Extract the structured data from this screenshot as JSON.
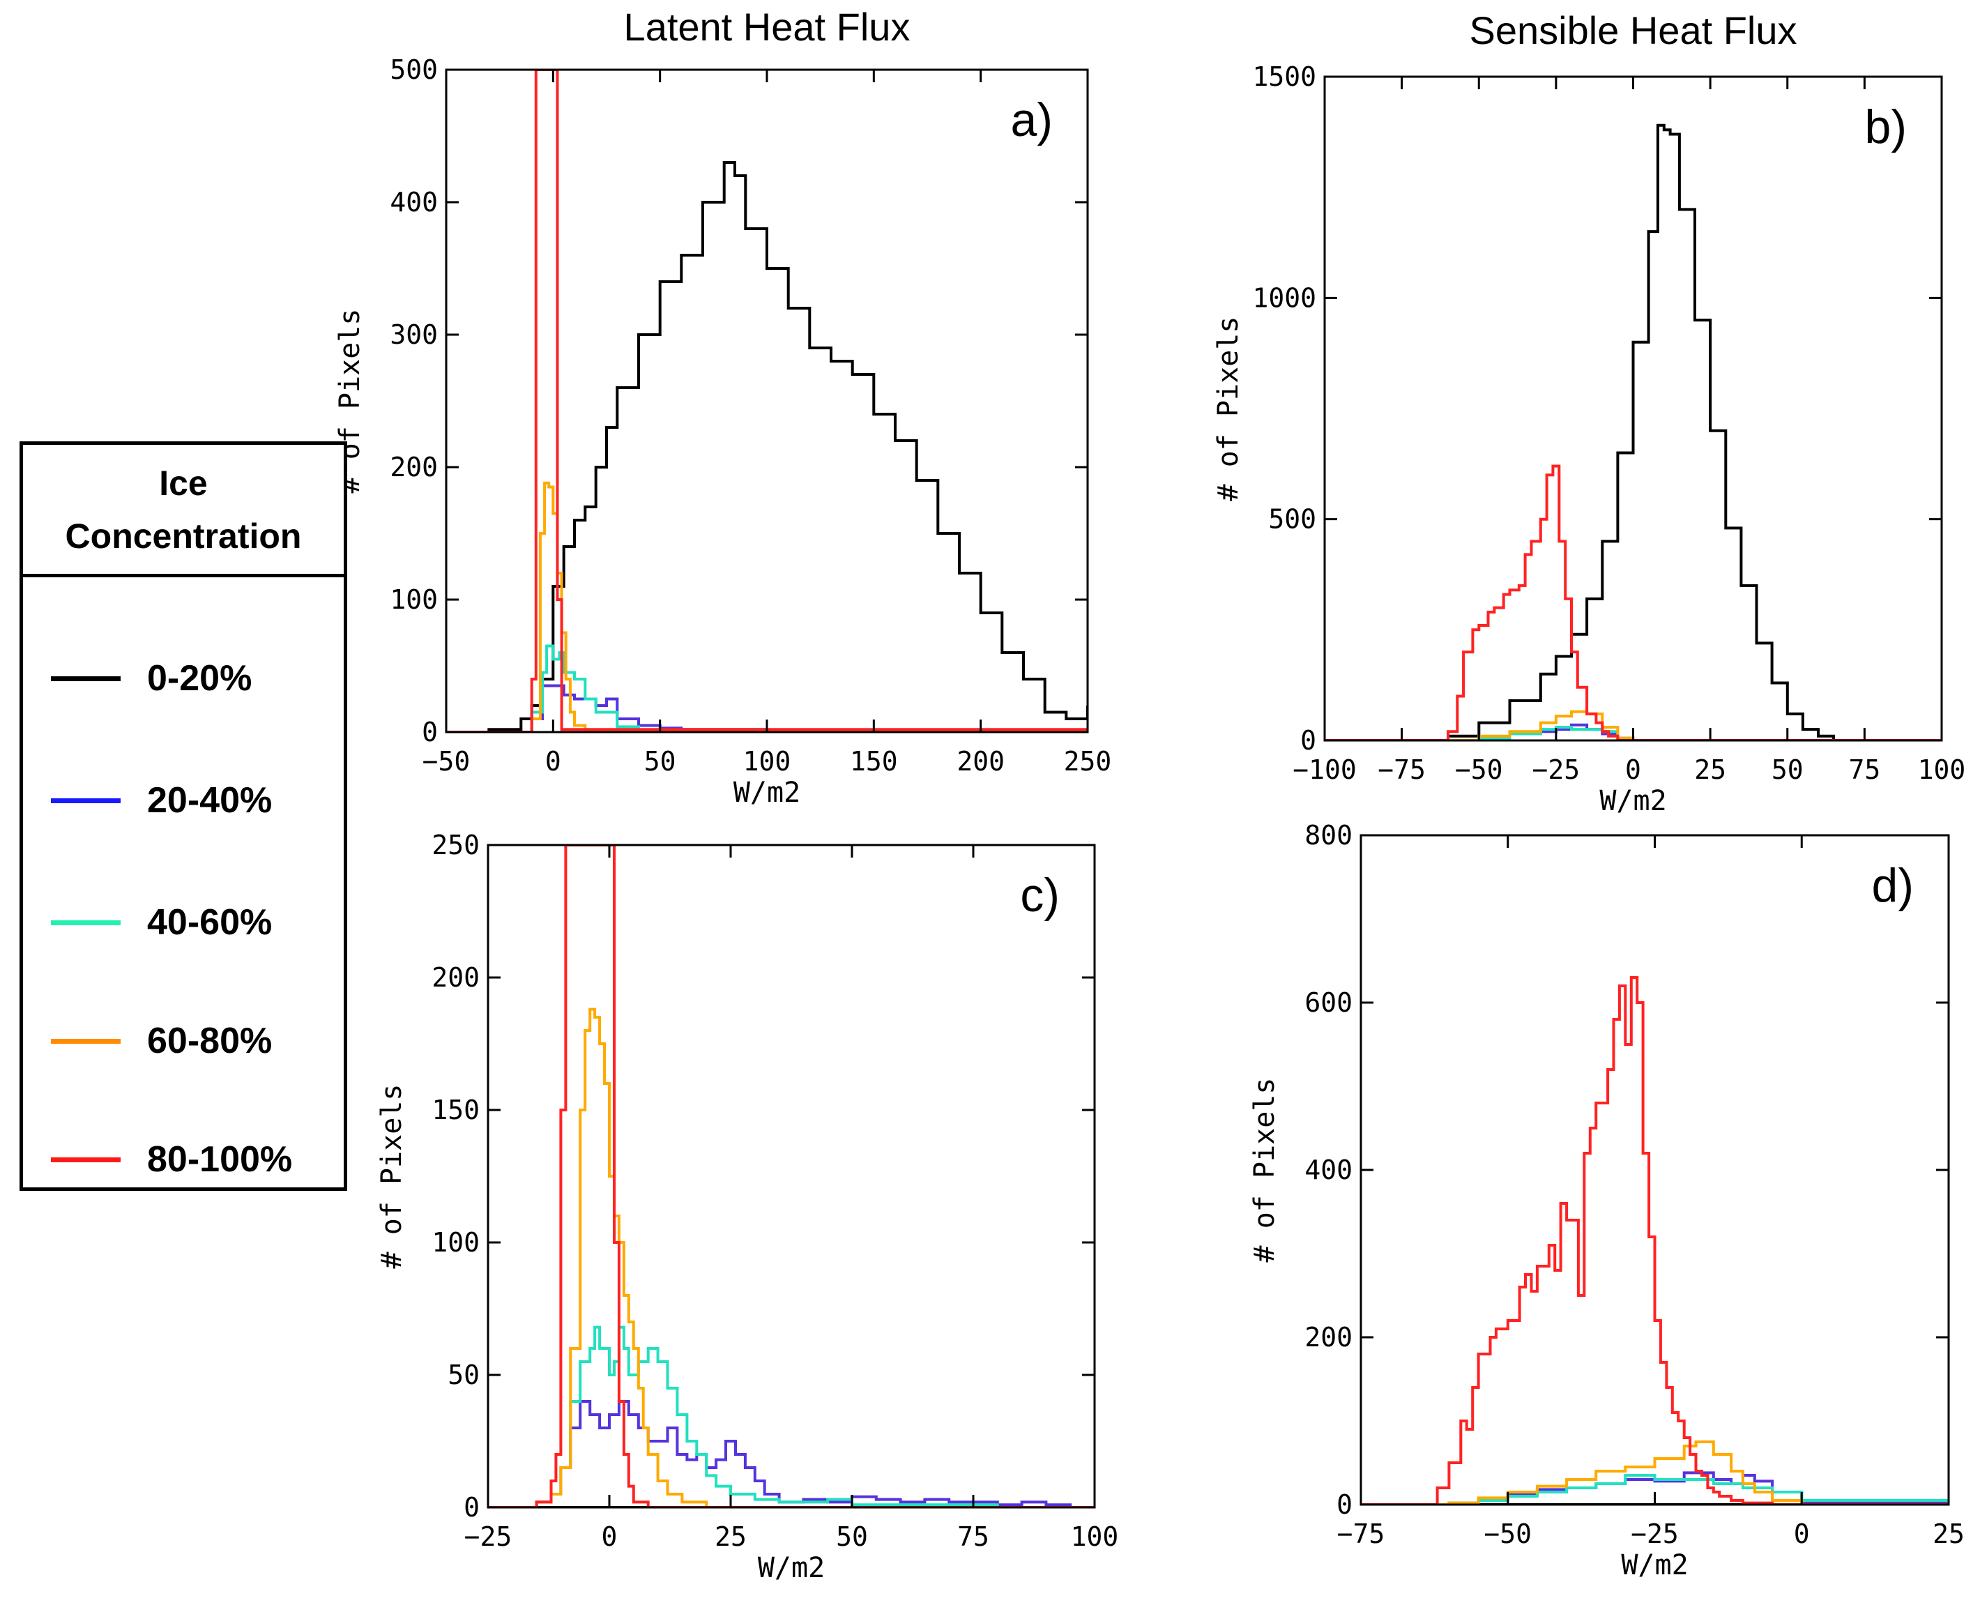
{
  "legend": {
    "title_line1": "Ice",
    "title_line2": "Concentration",
    "items": [
      {
        "label": "0-20%",
        "color": "#000000"
      },
      {
        "label": "20-40%",
        "color": "#1a1aff"
      },
      {
        "label": "40-60%",
        "color": "#22f0b0"
      },
      {
        "label": "60-80%",
        "color": "#ff8c00"
      },
      {
        "label": "80-100%",
        "color": "#ff1a1a"
      }
    ]
  },
  "colors": {
    "0-20%": "#000000",
    "20-40%": "#5533dd",
    "40-60%": "#22e0c0",
    "60-80%": "#ffaa00",
    "80-100%": "#ff2222"
  },
  "chart_data": [
    {
      "panel": "a)",
      "type": "line",
      "title": "Latent Heat Flux",
      "xlabel": "W/m2",
      "ylabel": "# of Pixels",
      "xlim": [
        -50,
        250
      ],
      "ylim": [
        0,
        500
      ],
      "xticks": [
        -50,
        0,
        50,
        100,
        150,
        200,
        250
      ],
      "yticks": [
        0,
        100,
        200,
        300,
        400,
        500
      ],
      "series": [
        {
          "name": "0-20%",
          "x": [
            -50,
            -30,
            -15,
            -10,
            -5,
            0,
            5,
            10,
            15,
            20,
            25,
            30,
            40,
            50,
            60,
            70,
            80,
            85,
            90,
            100,
            110,
            120,
            130,
            140,
            150,
            160,
            170,
            180,
            190,
            200,
            210,
            220,
            230,
            240,
            250
          ],
          "values": [
            0,
            2,
            10,
            20,
            40,
            110,
            140,
            160,
            170,
            200,
            230,
            260,
            300,
            340,
            360,
            400,
            430,
            420,
            380,
            350,
            320,
            290,
            280,
            270,
            240,
            220,
            190,
            150,
            120,
            90,
            60,
            40,
            15,
            10,
            20
          ]
        },
        {
          "name": "20-40%",
          "x": [
            -50,
            -15,
            -10,
            -5,
            0,
            5,
            10,
            15,
            20,
            25,
            30,
            40,
            50,
            60,
            80,
            100,
            120,
            250
          ],
          "values": [
            0,
            0,
            10,
            35,
            35,
            28,
            25,
            25,
            20,
            25,
            10,
            5,
            3,
            2,
            2,
            1,
            0,
            0
          ]
        },
        {
          "name": "40-60%",
          "x": [
            -50,
            -15,
            -10,
            -5,
            -3,
            0,
            3,
            5,
            10,
            15,
            20,
            30,
            40,
            250
          ],
          "values": [
            0,
            0,
            15,
            45,
            65,
            55,
            60,
            45,
            40,
            25,
            15,
            4,
            1,
            0
          ]
        },
        {
          "name": "60-80%",
          "x": [
            -50,
            -15,
            -10,
            -6,
            -4,
            -2,
            0,
            2,
            4,
            6,
            8,
            10,
            15,
            250
          ],
          "values": [
            0,
            0,
            10,
            150,
            188,
            185,
            165,
            120,
            75,
            40,
            15,
            5,
            0,
            0
          ]
        },
        {
          "name": "80-100%",
          "x": [
            -50,
            -12,
            -10,
            -8,
            -5,
            -3,
            -1,
            0,
            2,
            4,
            250
          ],
          "values": [
            0,
            0,
            40,
            500,
            500,
            500,
            500,
            500,
            100,
            2,
            0
          ]
        }
      ]
    },
    {
      "panel": "b)",
      "type": "line",
      "title": "Sensible Heat Flux",
      "xlabel": "W/m2",
      "ylabel": "# of Pixels",
      "xlim": [
        -100,
        100
      ],
      "ylim": [
        0,
        1500
      ],
      "xticks": [
        -100,
        -75,
        -50,
        -25,
        0,
        25,
        50,
        75,
        100
      ],
      "yticks": [
        0,
        500,
        1000,
        1500
      ],
      "series": [
        {
          "name": "0-20%",
          "x": [
            -100,
            -70,
            -60,
            -50,
            -40,
            -30,
            -25,
            -20,
            -15,
            -10,
            -5,
            0,
            5,
            8,
            10,
            12,
            15,
            20,
            25,
            30,
            35,
            40,
            45,
            50,
            55,
            60,
            65,
            100
          ],
          "values": [
            0,
            0,
            10,
            40,
            90,
            150,
            190,
            240,
            320,
            450,
            650,
            900,
            1150,
            1390,
            1380,
            1370,
            1200,
            950,
            700,
            480,
            350,
            220,
            130,
            60,
            25,
            10,
            0,
            0
          ]
        },
        {
          "name": "20-40%",
          "x": [
            -100,
            -60,
            -50,
            -40,
            -30,
            -25,
            -20,
            -15,
            -10,
            -5,
            0,
            100
          ],
          "values": [
            0,
            0,
            5,
            15,
            20,
            25,
            35,
            25,
            15,
            5,
            0,
            0
          ]
        },
        {
          "name": "40-60%",
          "x": [
            -100,
            -60,
            -50,
            -40,
            -30,
            -25,
            -20,
            -15,
            -10,
            -5,
            0,
            100
          ],
          "values": [
            0,
            0,
            5,
            15,
            25,
            30,
            25,
            25,
            20,
            5,
            0,
            0
          ]
        },
        {
          "name": "60-80%",
          "x": [
            -100,
            -60,
            -50,
            -40,
            -30,
            -25,
            -20,
            -15,
            -10,
            -5,
            0,
            100
          ],
          "values": [
            0,
            0,
            10,
            20,
            40,
            55,
            65,
            60,
            30,
            5,
            0,
            0
          ]
        },
        {
          "name": "80-100%",
          "x": [
            -100,
            -65,
            -60,
            -57,
            -55,
            -52,
            -50,
            -47,
            -45,
            -42,
            -40,
            -37,
            -35,
            -33,
            -30,
            -28,
            -26,
            -24,
            -22,
            -20,
            -18,
            -15,
            -12,
            -10,
            -8,
            -5,
            0,
            100
          ],
          "values": [
            0,
            0,
            20,
            100,
            200,
            250,
            260,
            290,
            300,
            330,
            340,
            350,
            420,
            450,
            500,
            600,
            620,
            450,
            320,
            200,
            120,
            60,
            40,
            20,
            10,
            0,
            0,
            0
          ]
        }
      ]
    },
    {
      "panel": "c)",
      "type": "line",
      "title": "",
      "xlabel": "W/m2",
      "ylabel": "# of Pixels",
      "xlim": [
        -25,
        100
      ],
      "ylim": [
        0,
        250
      ],
      "xticks": [
        -25,
        0,
        25,
        50,
        75,
        100
      ],
      "yticks": [
        0,
        50,
        100,
        150,
        200,
        250
      ],
      "series": [
        {
          "name": "0-20%",
          "x": [
            -25,
            100
          ],
          "values": [
            0,
            0
          ]
        },
        {
          "name": "20-40%",
          "x": [
            -25,
            -15,
            -12,
            -10,
            -8,
            -6,
            -4,
            -2,
            0,
            2,
            4,
            6,
            8,
            10,
            12,
            14,
            16,
            18,
            20,
            22,
            24,
            26,
            28,
            30,
            32,
            35,
            40,
            45,
            50,
            55,
            60,
            65,
            70,
            75,
            80,
            85,
            90,
            95,
            100
          ],
          "values": [
            0,
            2,
            5,
            15,
            30,
            40,
            35,
            30,
            35,
            40,
            35,
            30,
            25,
            25,
            30,
            20,
            18,
            20,
            15,
            18,
            25,
            20,
            15,
            10,
            5,
            2,
            3,
            2,
            4,
            3,
            2,
            3,
            2,
            2,
            1,
            2,
            1,
            0,
            0
          ]
        },
        {
          "name": "40-60%",
          "x": [
            -25,
            -15,
            -12,
            -10,
            -8,
            -6,
            -4,
            -3,
            -2,
            0,
            1,
            2,
            3,
            4,
            6,
            8,
            10,
            12,
            14,
            16,
            18,
            20,
            22,
            25,
            30,
            35,
            40,
            45,
            50,
            60,
            70,
            80,
            100
          ],
          "values": [
            0,
            2,
            5,
            15,
            40,
            55,
            60,
            68,
            60,
            50,
            55,
            68,
            60,
            50,
            55,
            60,
            55,
            45,
            35,
            25,
            20,
            12,
            8,
            5,
            3,
            2,
            2,
            3,
            1,
            1,
            1,
            0,
            0
          ]
        },
        {
          "name": "60-80%",
          "x": [
            -25,
            -15,
            -12,
            -10,
            -8,
            -6,
            -5,
            -4,
            -3,
            -2,
            -1,
            0,
            1,
            2,
            3,
            4,
            5,
            6,
            7,
            8,
            10,
            12,
            15,
            20,
            100
          ],
          "values": [
            0,
            2,
            5,
            15,
            60,
            150,
            180,
            188,
            185,
            175,
            160,
            125,
            110,
            100,
            80,
            70,
            60,
            45,
            30,
            20,
            10,
            5,
            2,
            0,
            0
          ]
        },
        {
          "name": "80-100%",
          "x": [
            -25,
            -15,
            -12,
            -11,
            -10,
            -9,
            -8,
            -6,
            -4,
            -2,
            -1,
            0,
            1,
            2,
            3,
            4,
            5,
            8,
            100
          ],
          "values": [
            0,
            2,
            10,
            20,
            150,
            250,
            250,
            250,
            250,
            250,
            250,
            250,
            100,
            40,
            20,
            8,
            2,
            0,
            0
          ]
        }
      ]
    },
    {
      "panel": "d)",
      "type": "line",
      "title": "",
      "xlabel": "W/m2",
      "ylabel": "# of Pixels",
      "xlim": [
        -75,
        25
      ],
      "ylim": [
        0,
        800
      ],
      "xticks": [
        -75,
        -50,
        -25,
        0,
        25
      ],
      "yticks": [
        0,
        200,
        400,
        600,
        800
      ],
      "series": [
        {
          "name": "0-20%",
          "x": [
            -75,
            25
          ],
          "values": [
            0,
            0
          ]
        },
        {
          "name": "20-40%",
          "x": [
            -75,
            -60,
            -55,
            -50,
            -45,
            -40,
            -35,
            -30,
            -25,
            -20,
            -15,
            -12,
            -10,
            -8,
            -5,
            0,
            25
          ],
          "values": [
            0,
            2,
            5,
            12,
            18,
            20,
            25,
            30,
            28,
            38,
            30,
            25,
            35,
            28,
            15,
            3,
            0
          ]
        },
        {
          "name": "40-60%",
          "x": [
            -75,
            -60,
            -55,
            -50,
            -45,
            -40,
            -35,
            -30,
            -25,
            -20,
            -15,
            -10,
            -5,
            0,
            25
          ],
          "values": [
            0,
            2,
            5,
            10,
            15,
            20,
            25,
            35,
            30,
            30,
            25,
            20,
            15,
            5,
            0
          ]
        },
        {
          "name": "60-80%",
          "x": [
            -75,
            -60,
            -55,
            -50,
            -45,
            -40,
            -35,
            -30,
            -25,
            -20,
            -18,
            -15,
            -12,
            -10,
            -8,
            -5,
            0,
            25
          ],
          "values": [
            0,
            2,
            8,
            15,
            22,
            30,
            40,
            45,
            55,
            70,
            75,
            60,
            40,
            25,
            15,
            5,
            0,
            0
          ]
        },
        {
          "name": "80-100%",
          "x": [
            -75,
            -65,
            -62,
            -60,
            -58,
            -57,
            -56,
            -55,
            -53,
            -52,
            -50,
            -48,
            -47,
            -46,
            -45,
            -43,
            -42,
            -41,
            -40,
            -38,
            -37,
            -36,
            -35,
            -33,
            -32,
            -31,
            -30,
            -29,
            -28,
            -27,
            -26,
            -25,
            -24,
            -23,
            -22,
            -21,
            -20,
            -19,
            -18,
            -17,
            -16,
            -15,
            -14,
            -12,
            -10,
            -5,
            0,
            25
          ],
          "values": [
            0,
            0,
            20,
            50,
            100,
            90,
            140,
            180,
            200,
            210,
            220,
            260,
            275,
            255,
            285,
            310,
            280,
            360,
            340,
            250,
            420,
            450,
            480,
            520,
            580,
            620,
            550,
            630,
            600,
            420,
            320,
            220,
            170,
            140,
            110,
            100,
            80,
            60,
            40,
            35,
            20,
            15,
            10,
            5,
            2,
            0,
            0,
            0
          ]
        }
      ]
    }
  ]
}
